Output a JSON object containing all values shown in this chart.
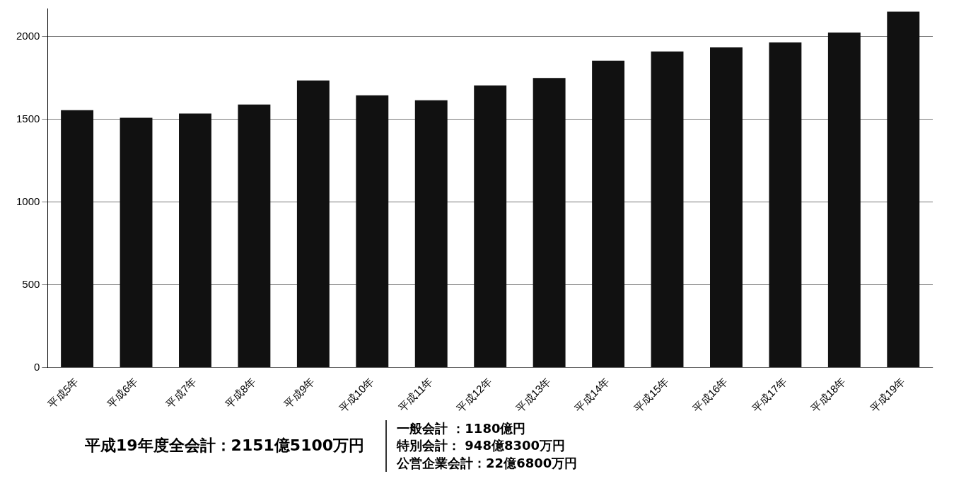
{
  "chart_data": {
    "type": "bar",
    "categories": [
      "平成5年",
      "平成6年",
      "平成7年",
      "平成8年",
      "平成9年",
      "平成10年",
      "平成11年",
      "平成12年",
      "平成13年",
      "平成14年",
      "平成15年",
      "平成16年",
      "平成17年",
      "平成18年",
      "平成19年"
    ],
    "values": [
      1555,
      1510,
      1535,
      1590,
      1735,
      1645,
      1615,
      1705,
      1750,
      1855,
      1910,
      1935,
      1965,
      2025,
      2151
    ],
    "color": "#111111",
    "ylim": [
      0,
      2170
    ],
    "yticks": [
      0,
      500,
      1000,
      1500,
      2000
    ],
    "grid": "y",
    "annotations": [
      "平成19年度全会計：2151億5100万円",
      "一般会計 ：1180億円",
      "特別会計： 948億8300万円",
      "公営企業会計：22億6800万円"
    ]
  }
}
